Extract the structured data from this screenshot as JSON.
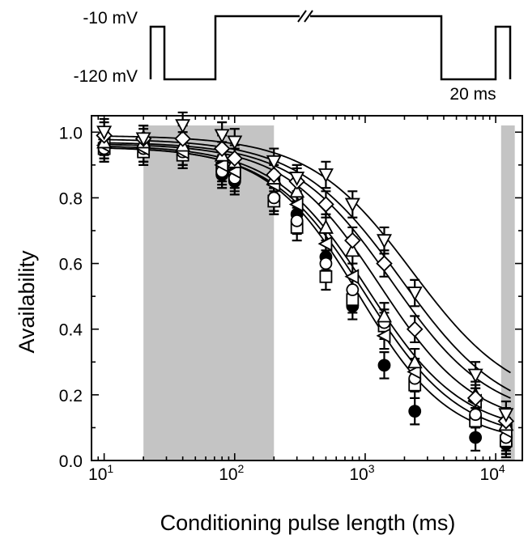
{
  "chart_data": {
    "type": "scatter",
    "x_scale": "log",
    "xlabel": "Conditioning pulse length (ms)",
    "ylabel": "Availability",
    "xlim": [
      8,
      16000
    ],
    "ylim": [
      0,
      1.05
    ],
    "x_ticks": [
      {
        "value": 10,
        "base": "10",
        "exp": "1"
      },
      {
        "value": 100,
        "base": "10",
        "exp": "2"
      },
      {
        "value": 1000,
        "base": "10",
        "exp": "3"
      },
      {
        "value": 10000,
        "base": "10",
        "exp": "4"
      }
    ],
    "y_ticks": [
      {
        "value": 0,
        "label": "0.0"
      },
      {
        "value": 0.2,
        "label": "0.2"
      },
      {
        "value": 0.4,
        "label": "0.4"
      },
      {
        "value": 0.6,
        "label": "0.6"
      },
      {
        "value": 0.8,
        "label": "0.8"
      },
      {
        "value": 1.0,
        "label": "1.0"
      }
    ],
    "shaded_regions": [
      {
        "x_from": 20,
        "x_to": 200
      },
      {
        "x_from": 11000,
        "x_to": 14000
      }
    ],
    "x": [
      10,
      20,
      40,
      80,
      100,
      200,
      300,
      500,
      800,
      1400,
      2400,
      7000,
      12000
    ],
    "series": [
      {
        "marker": "filled-circle",
        "values": [
          0.96,
          0.95,
          0.93,
          0.87,
          0.85,
          0.8,
          0.75,
          0.62,
          0.47,
          0.29,
          0.15,
          0.07,
          0.05
        ],
        "error": 0.04
      },
      {
        "marker": "open-square",
        "values": [
          0.95,
          0.94,
          0.93,
          0.89,
          0.87,
          0.79,
          0.71,
          0.56,
          0.49,
          0.41,
          0.23,
          0.12,
          0.06
        ],
        "error": 0.04
      },
      {
        "marker": "open-circle",
        "values": [
          0.95,
          0.95,
          0.94,
          0.88,
          0.86,
          0.8,
          0.73,
          0.6,
          0.52,
          0.42,
          0.25,
          0.14,
          0.07
        ],
        "error": 0.04
      },
      {
        "marker": "left-triangle",
        "values": [
          0.96,
          0.95,
          0.94,
          0.9,
          0.88,
          0.84,
          0.78,
          0.66,
          0.56,
          0.38,
          0.27,
          0.18,
          0.09
        ],
        "error": 0.04
      },
      {
        "marker": "up-triangle",
        "values": [
          0.97,
          0.97,
          0.96,
          0.93,
          0.91,
          0.86,
          0.82,
          0.71,
          0.64,
          0.44,
          0.3,
          0.2,
          0.11
        ],
        "error": 0.04
      },
      {
        "marker": "open-diamond",
        "values": [
          0.99,
          0.98,
          0.98,
          0.95,
          0.92,
          0.87,
          0.85,
          0.78,
          0.67,
          0.6,
          0.4,
          0.19,
          0.12
        ],
        "error": 0.04
      },
      {
        "marker": "down-triangle",
        "values": [
          1.0,
          0.98,
          1.02,
          0.99,
          0.97,
          0.91,
          0.86,
          0.87,
          0.78,
          0.67,
          0.51,
          0.26,
          0.14
        ],
        "error": 0.04
      }
    ],
    "fits": [
      {
        "top": 0.955,
        "bottom": 0.05,
        "x50": 900,
        "slope": 1.25
      },
      {
        "top": 0.955,
        "bottom": 0.06,
        "x50": 1000,
        "slope": 1.2
      },
      {
        "top": 0.96,
        "bottom": 0.08,
        "x50": 1050,
        "slope": 1.2
      },
      {
        "top": 0.965,
        "bottom": 0.1,
        "x50": 1300,
        "slope": 1.2
      },
      {
        "top": 0.97,
        "bottom": 0.12,
        "x50": 1600,
        "slope": 1.15
      },
      {
        "top": 0.98,
        "bottom": 0.12,
        "x50": 1900,
        "slope": 1.1
      },
      {
        "top": 0.99,
        "bottom": 0.16,
        "x50": 2300,
        "slope": 1.1
      }
    ]
  },
  "protocol": {
    "label_high": "-10 mV",
    "label_low": "-120 mV",
    "duration_label": "20 ms"
  }
}
